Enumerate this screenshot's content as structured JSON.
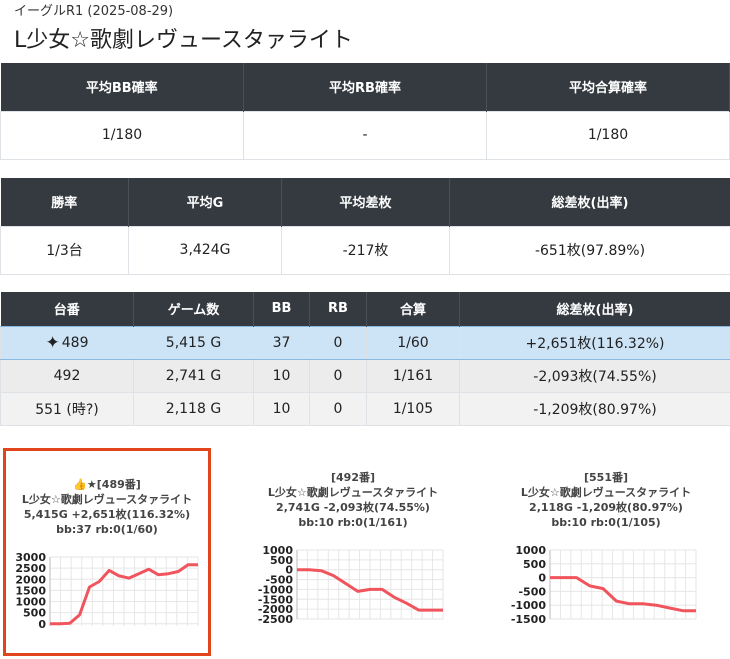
{
  "header": {
    "subtitle": "イーグルR1 (2025-08-29)",
    "title": "L少女☆歌劇レヴュースタァライト"
  },
  "summary1": {
    "headers": [
      "平均BB確率",
      "平均RB確率",
      "平均合算確率"
    ],
    "values": [
      "1/180",
      "-",
      "1/180"
    ]
  },
  "summary2": {
    "headers": [
      "勝率",
      "平均G",
      "平均差枚",
      "総差枚(出率)"
    ],
    "values": [
      "1/3台",
      "3,424G",
      "-217枚",
      "-651枚(97.89%)"
    ]
  },
  "machines": {
    "headers": [
      "台番",
      "ゲーム数",
      "BB",
      "RB",
      "合算",
      "総差枚(出率)"
    ],
    "rows": [
      {
        "icon": "sparkle-icon",
        "no": "489",
        "games": "5,415 G",
        "bb": "37",
        "rb": "0",
        "total": "1/60",
        "diff": "+2,651枚(116.32%)"
      },
      {
        "no": "492",
        "games": "2,741 G",
        "bb": "10",
        "rb": "0",
        "total": "1/161",
        "diff": "-2,093枚(74.55%)"
      },
      {
        "no": "551 (時?)",
        "games": "2,118 G",
        "bb": "10",
        "rb": "0",
        "total": "1/105",
        "diff": "-1,209枚(80.97%)"
      }
    ]
  },
  "cards": [
    {
      "line1": "👍★[489番]",
      "line2": "L少女☆歌劇レヴュースタァライト",
      "line3": "5,415G +2,651枚(116.32%)",
      "line4": "bb:37 rb:0(1/60)"
    },
    {
      "line1": "[492番]",
      "line2": "L少女☆歌劇レヴュースタァライト",
      "line3": "2,741G -2,093枚(74.55%)",
      "line4": "bb:10 rb:0(1/161)"
    },
    {
      "line1": "[551番]",
      "line2": "L少女☆歌劇レヴュースタァライト",
      "line3": "2,118G -1,209枚(80.97%)",
      "line4": "bb:10 rb:0(1/105)"
    }
  ],
  "chart_data": [
    {
      "type": "line",
      "color": "#f0545c",
      "ylim": [
        -100,
        3000
      ],
      "yticks": [
        3000,
        2500,
        2000,
        1500,
        1000,
        500,
        0
      ],
      "values": [
        0,
        0,
        20,
        400,
        1650,
        1900,
        2400,
        2150,
        2050,
        2250,
        2450,
        2200,
        2250,
        2350,
        2650,
        2650
      ]
    },
    {
      "type": "line",
      "color": "#f0545c",
      "ylim": [
        -2500,
        1000
      ],
      "yticks": [
        1000,
        500,
        0,
        -500,
        -1000,
        -1500,
        -2000,
        -2500
      ],
      "values": [
        0,
        0,
        -50,
        -300,
        -700,
        -1100,
        -1000,
        -1000,
        -1400,
        -1700,
        -2050,
        -2050,
        -2050
      ]
    },
    {
      "type": "line",
      "color": "#f0545c",
      "ylim": [
        -1500,
        1000
      ],
      "yticks": [
        1000,
        500,
        0,
        -500,
        -1000,
        -1500
      ],
      "values": [
        0,
        0,
        0,
        -300,
        -400,
        -850,
        -950,
        -950,
        -1000,
        -1100,
        -1200,
        -1200
      ]
    }
  ]
}
